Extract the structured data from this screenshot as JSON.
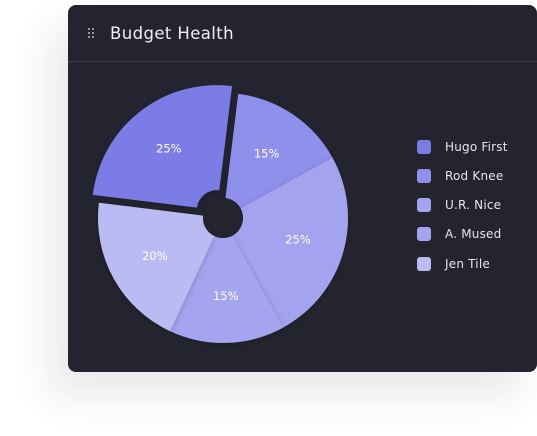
{
  "card": {
    "title": "Budget Health",
    "drag_icon": "grip-dots-icon"
  },
  "colors": {
    "card_bg": "#23242f",
    "series": [
      "#7b7be6",
      "#8f8fec",
      "#a3a3f0",
      "#a5a4f1",
      "#bbbbf4"
    ]
  },
  "chart_data": {
    "type": "pie",
    "title": "Budget Health",
    "style": "donut-exploded",
    "slices": [
      {
        "name": "Hugo First",
        "value": 25,
        "label": "25%",
        "color": "#7b7be6"
      },
      {
        "name": "Rod Knee",
        "value": 15,
        "label": "15%",
        "color": "#8f8fec"
      },
      {
        "name": "U.R. Nice",
        "value": 25,
        "label": "25%",
        "color": "#a3a3f0"
      },
      {
        "name": "A. Mused",
        "value": 15,
        "label": "15%",
        "color": "#a5a4f1"
      },
      {
        "name": "Jen Tile",
        "value": 20,
        "label": "20%",
        "color": "#bbbbf4"
      }
    ],
    "legend_position": "right"
  }
}
